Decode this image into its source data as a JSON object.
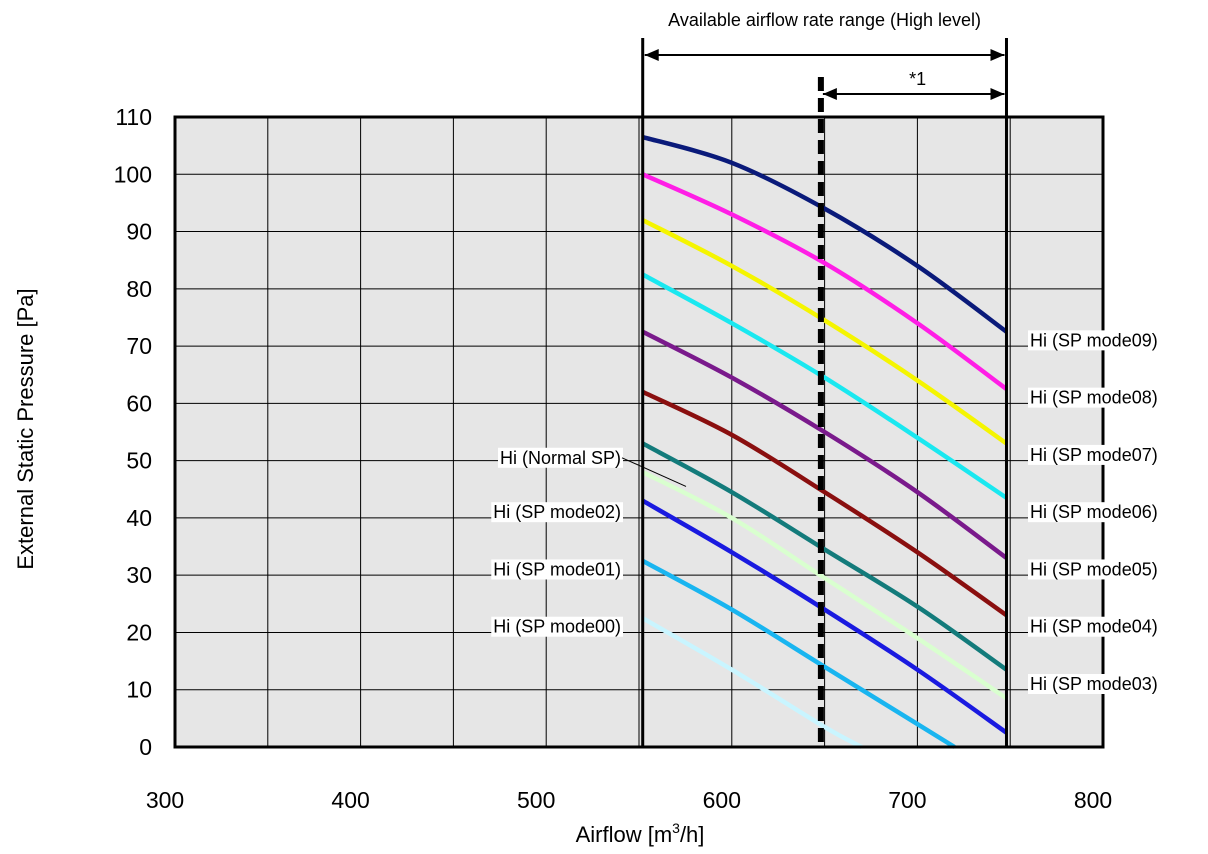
{
  "chart_data": {
    "type": "line",
    "xlabel_prefix": "Airflow [m",
    "xlabel_sup": "3",
    "xlabel_suffix": "/h]",
    "ylabel": "External Static Pressure [Pa]",
    "xlim": [
      300,
      800
    ],
    "ylim": [
      0,
      110
    ],
    "x_ticks": [
      300,
      400,
      500,
      600,
      700,
      800
    ],
    "y_ticks": [
      0,
      10,
      20,
      30,
      40,
      50,
      60,
      70,
      80,
      90,
      100,
      110
    ],
    "grid": true,
    "range_label": "Available airflow rate range (High level)",
    "range_x": [
      552,
      748
    ],
    "note_label": "*1",
    "note_x": [
      648,
      748
    ],
    "series": [
      {
        "name": "Hi (SP mode09)",
        "color": "#0a1a7a",
        "x": [
          552,
          600,
          650,
          700,
          748
        ],
        "y": [
          106.5,
          102,
          94,
          84,
          72.5
        ]
      },
      {
        "name": "Hi (SP mode08)",
        "color": "#ff1ee6",
        "x": [
          552,
          600,
          650,
          700,
          748
        ],
        "y": [
          100,
          93,
          84.5,
          74,
          62.5
        ]
      },
      {
        "name": "Hi (SP mode07)",
        "color": "#f5f500",
        "x": [
          552,
          600,
          650,
          700,
          748
        ],
        "y": [
          92,
          84,
          74.5,
          64,
          53
        ]
      },
      {
        "name": "Hi (SP mode06)",
        "color": "#1ae8f0",
        "x": [
          552,
          600,
          650,
          700,
          748
        ],
        "y": [
          82.5,
          74,
          64.5,
          54,
          43.5
        ]
      },
      {
        "name": "Hi (SP mode05)",
        "color": "#7a1a8c",
        "x": [
          552,
          600,
          650,
          700,
          748
        ],
        "y": [
          72.5,
          64.5,
          55,
          44.5,
          33
        ]
      },
      {
        "name": "Hi (SP mode04)",
        "color": "#8a0f0f",
        "x": [
          552,
          600,
          650,
          700,
          748
        ],
        "y": [
          62,
          54.5,
          44.5,
          34,
          23
        ]
      },
      {
        "name": "Hi (SP mode03)",
        "color": "#137b7b",
        "x": [
          552,
          600,
          650,
          700,
          748
        ],
        "y": [
          53,
          44.5,
          34.5,
          24.5,
          13.5
        ]
      },
      {
        "name": "Hi (Normal SP)",
        "color": "#d9ffcf",
        "x": [
          552,
          600,
          650,
          700,
          748
        ],
        "y": [
          48,
          40,
          29.5,
          19,
          8.5
        ]
      },
      {
        "name": "Hi (SP mode02)",
        "color": "#1a1ae0",
        "x": [
          552,
          600,
          650,
          700,
          748
        ],
        "y": [
          43,
          34,
          24,
          13.5,
          2.5
        ]
      },
      {
        "name": "Hi (SP mode01)",
        "color": "#19b5f0",
        "x": [
          552,
          600,
          650,
          700,
          720
        ],
        "y": [
          32.5,
          24,
          14,
          4,
          0
        ]
      },
      {
        "name": "Hi (SP mode00)",
        "color": "#c9f5ff",
        "x": [
          552,
          600,
          650,
          670
        ],
        "y": [
          22.5,
          13.5,
          3.5,
          0
        ]
      }
    ],
    "right_labels": [
      {
        "text": "Hi (SP mode09)",
        "y": 71
      },
      {
        "text": "Hi (SP mode08)",
        "y": 61
      },
      {
        "text": "Hi (SP mode07)",
        "y": 51
      },
      {
        "text": "Hi (SP mode06)",
        "y": 41
      },
      {
        "text": "Hi (SP mode05)",
        "y": 31
      },
      {
        "text": "Hi (SP mode04)",
        "y": 21
      },
      {
        "text": "Hi (SP mode03)",
        "y": 11
      }
    ],
    "left_labels": [
      {
        "text": "Hi (Normal SP)",
        "y": 50.5,
        "leader": true
      },
      {
        "text": "Hi (SP mode02)",
        "y": 41
      },
      {
        "text": "Hi (SP mode01)",
        "y": 31
      },
      {
        "text": "Hi (SP mode00)",
        "y": 21
      }
    ]
  }
}
